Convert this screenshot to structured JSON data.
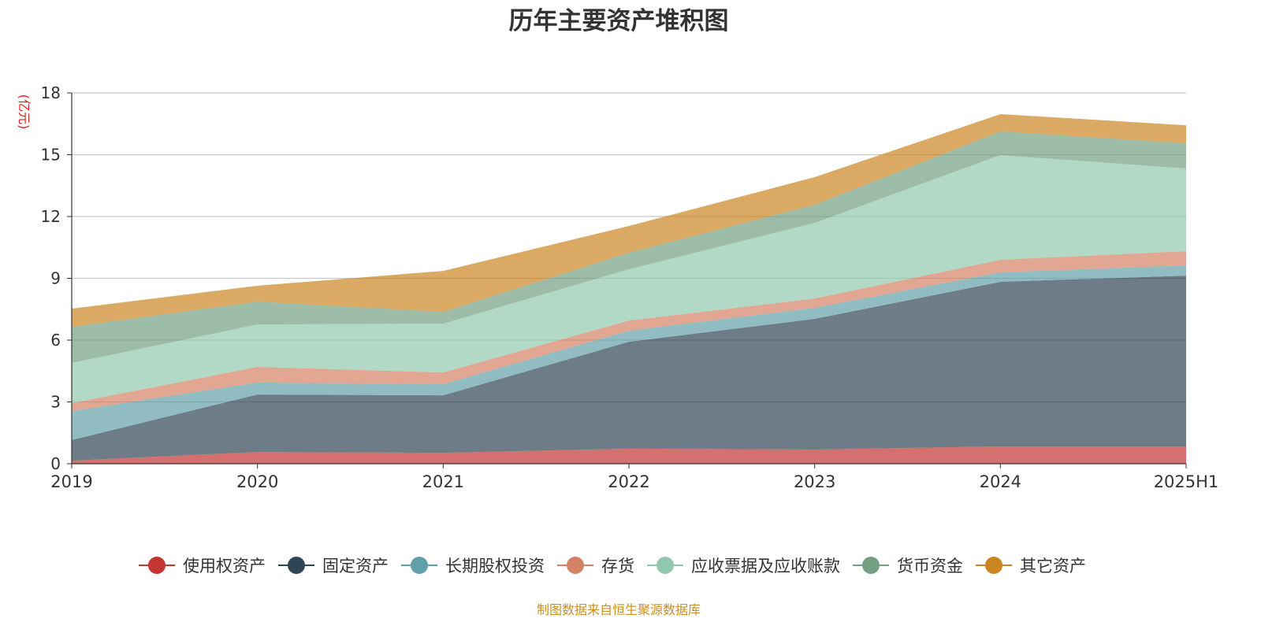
{
  "chart_data": {
    "type": "area",
    "stacked": true,
    "title": "历年主要资产堆积图",
    "ylabel": "(亿元)",
    "xlabel": "",
    "ylim": [
      0,
      18
    ],
    "yticks": [
      0,
      3,
      6,
      9,
      12,
      15,
      18
    ],
    "grid": true,
    "legend_position": "bottom",
    "categories": [
      "2019",
      "2020",
      "2021",
      "2022",
      "2023",
      "2024",
      "2025H1"
    ],
    "series": [
      {
        "name": "使用权资产",
        "color": "#c23531",
        "values": [
          0.15,
          0.57,
          0.53,
          0.73,
          0.69,
          0.84,
          0.84
        ]
      },
      {
        "name": "固定资产",
        "color": "#2f4554",
        "values": [
          1.0,
          2.79,
          2.79,
          5.19,
          6.34,
          7.99,
          8.29
        ]
      },
      {
        "name": "长期股权投资",
        "color": "#61a0a8",
        "values": [
          1.41,
          0.58,
          0.54,
          0.54,
          0.54,
          0.46,
          0.5
        ]
      },
      {
        "name": "存货",
        "color": "#d48265",
        "values": [
          0.38,
          0.76,
          0.57,
          0.49,
          0.45,
          0.61,
          0.69
        ]
      },
      {
        "name": "应收票据及应收账款",
        "color": "#91c7ae",
        "values": [
          1.95,
          2.06,
          2.37,
          2.49,
          3.67,
          5.08,
          4.01
        ]
      },
      {
        "name": "货币资金",
        "color": "#749f83",
        "values": [
          1.76,
          1.11,
          0.57,
          0.8,
          0.88,
          1.15,
          1.22
        ]
      },
      {
        "name": "其它资产",
        "color": "#ca8622",
        "values": [
          0.88,
          0.77,
          1.99,
          1.3,
          1.34,
          0.84,
          0.88
        ]
      }
    ],
    "source_note": "制图数据来自恒生聚源数据库"
  }
}
